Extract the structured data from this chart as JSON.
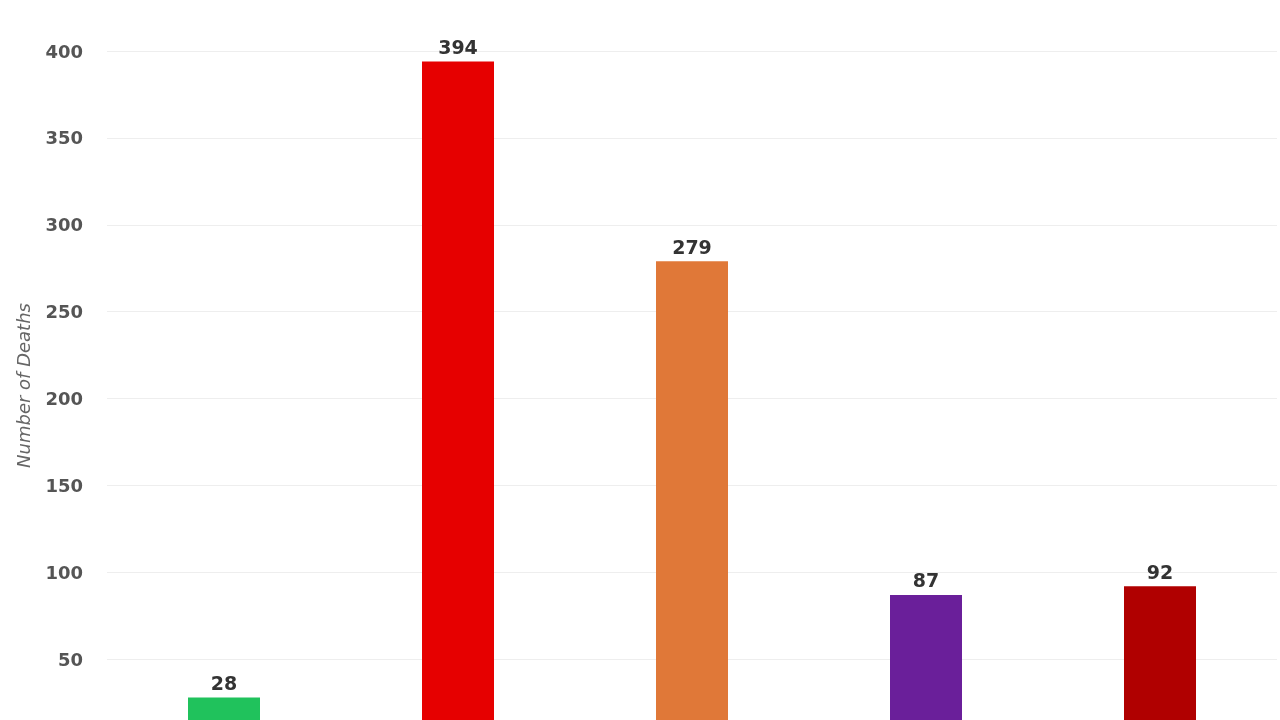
{
  "chart_data": {
    "type": "bar",
    "ylabel": "Number of Deaths",
    "categories": [
      null,
      null,
      null,
      null,
      null
    ],
    "values": [
      28,
      394,
      279,
      87,
      92
    ],
    "colors": [
      "#20c25c",
      "#e60000",
      "#e07838",
      "#6a1f9a",
      "#b00000"
    ],
    "ylim": [
      15,
      400
    ],
    "yticks": [
      50,
      100,
      150,
      200,
      250,
      300,
      350,
      400
    ],
    "grid": "y",
    "data_labels": true,
    "tick_labels": "y"
  }
}
